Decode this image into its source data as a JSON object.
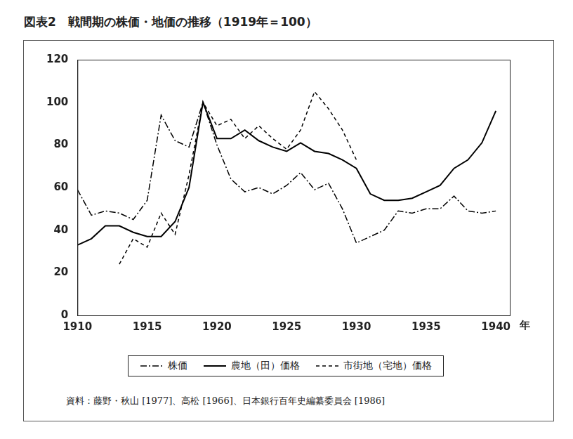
{
  "chart_data": {
    "type": "line",
    "title": "図表2　戦間期の株価・地価の推移（1919年＝100）",
    "x_label": "年",
    "source": "資料：藤野・秋山 [1977]、高松 [1966]、日本銀行百年史編纂委員会 [1986]",
    "x": [
      1910,
      1911,
      1912,
      1913,
      1914,
      1915,
      1916,
      1917,
      1918,
      1919,
      1920,
      1921,
      1922,
      1923,
      1924,
      1925,
      1926,
      1927,
      1928,
      1929,
      1930,
      1931,
      1932,
      1933,
      1934,
      1935,
      1936,
      1937,
      1938,
      1939,
      1940
    ],
    "series": [
      {
        "name": "株価",
        "color": "#000000",
        "line_style": "dashdot",
        "values": [
          59,
          47,
          49,
          48,
          45,
          54,
          94,
          82,
          79,
          100,
          80,
          64,
          58,
          60,
          57,
          61,
          67,
          59,
          62,
          50,
          34,
          37,
          40,
          49,
          48,
          50,
          50,
          56,
          49,
          48,
          49
        ]
      },
      {
        "name": "農地（田）価格",
        "color": "#000000",
        "line_style": "solid",
        "values": [
          33,
          36,
          42,
          42,
          39,
          37,
          37,
          44,
          60,
          100,
          83,
          83,
          87,
          82,
          79,
          77,
          81,
          77,
          76,
          73,
          69,
          57,
          54,
          54,
          55,
          58,
          61,
          69,
          73,
          81,
          96
        ]
      },
      {
        "name": "市街地（宅地）価格",
        "color": "#000000",
        "line_style": "dashed",
        "values": [
          null,
          null,
          null,
          24,
          36,
          32,
          48,
          38,
          66,
          100,
          89,
          92,
          83,
          89,
          83,
          78,
          87,
          105,
          97,
          87,
          73,
          null,
          null,
          null,
          null,
          null,
          null,
          null,
          null,
          null,
          null
        ]
      }
    ],
    "xlim": [
      1910,
      1941
    ],
    "xticks": [
      1910,
      1915,
      1920,
      1925,
      1930,
      1935,
      1940
    ],
    "ylim": [
      0,
      120
    ],
    "yticks": [
      0,
      20,
      40,
      60,
      80,
      100,
      120
    ],
    "grid": false,
    "legend": "bottom"
  }
}
